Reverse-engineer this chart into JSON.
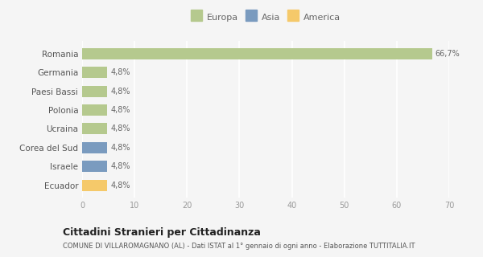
{
  "categories": [
    "Romania",
    "Germania",
    "Paesi Bassi",
    "Polonia",
    "Ucraina",
    "Corea del Sud",
    "Israele",
    "Ecuador"
  ],
  "values": [
    66.7,
    4.8,
    4.8,
    4.8,
    4.8,
    4.8,
    4.8,
    4.8
  ],
  "colors": [
    "#b5c98e",
    "#b5c98e",
    "#b5c98e",
    "#b5c98e",
    "#b5c98e",
    "#7a9bbf",
    "#7a9bbf",
    "#f5c96a"
  ],
  "labels": [
    "66,7%",
    "4,8%",
    "4,8%",
    "4,8%",
    "4,8%",
    "4,8%",
    "4,8%",
    "4,8%"
  ],
  "xlim": [
    0,
    70
  ],
  "xticks": [
    0,
    10,
    20,
    30,
    40,
    50,
    60,
    70
  ],
  "legend_labels": [
    "Europa",
    "Asia",
    "America"
  ],
  "legend_colors": [
    "#b5c98e",
    "#7a9bbf",
    "#f5c96a"
  ],
  "title": "Cittadini Stranieri per Cittadinanza",
  "subtitle": "COMUNE DI VILLAROMAGNANO (AL) - Dati ISTAT al 1° gennaio di ogni anno - Elaborazione TUTTITALIA.IT",
  "background_color": "#f5f5f5",
  "grid_color": "#ffffff",
  "label_fontsize": 7,
  "tick_fontsize": 7,
  "ytick_fontsize": 7.5,
  "legend_fontsize": 8,
  "title_fontsize": 9,
  "subtitle_fontsize": 6
}
